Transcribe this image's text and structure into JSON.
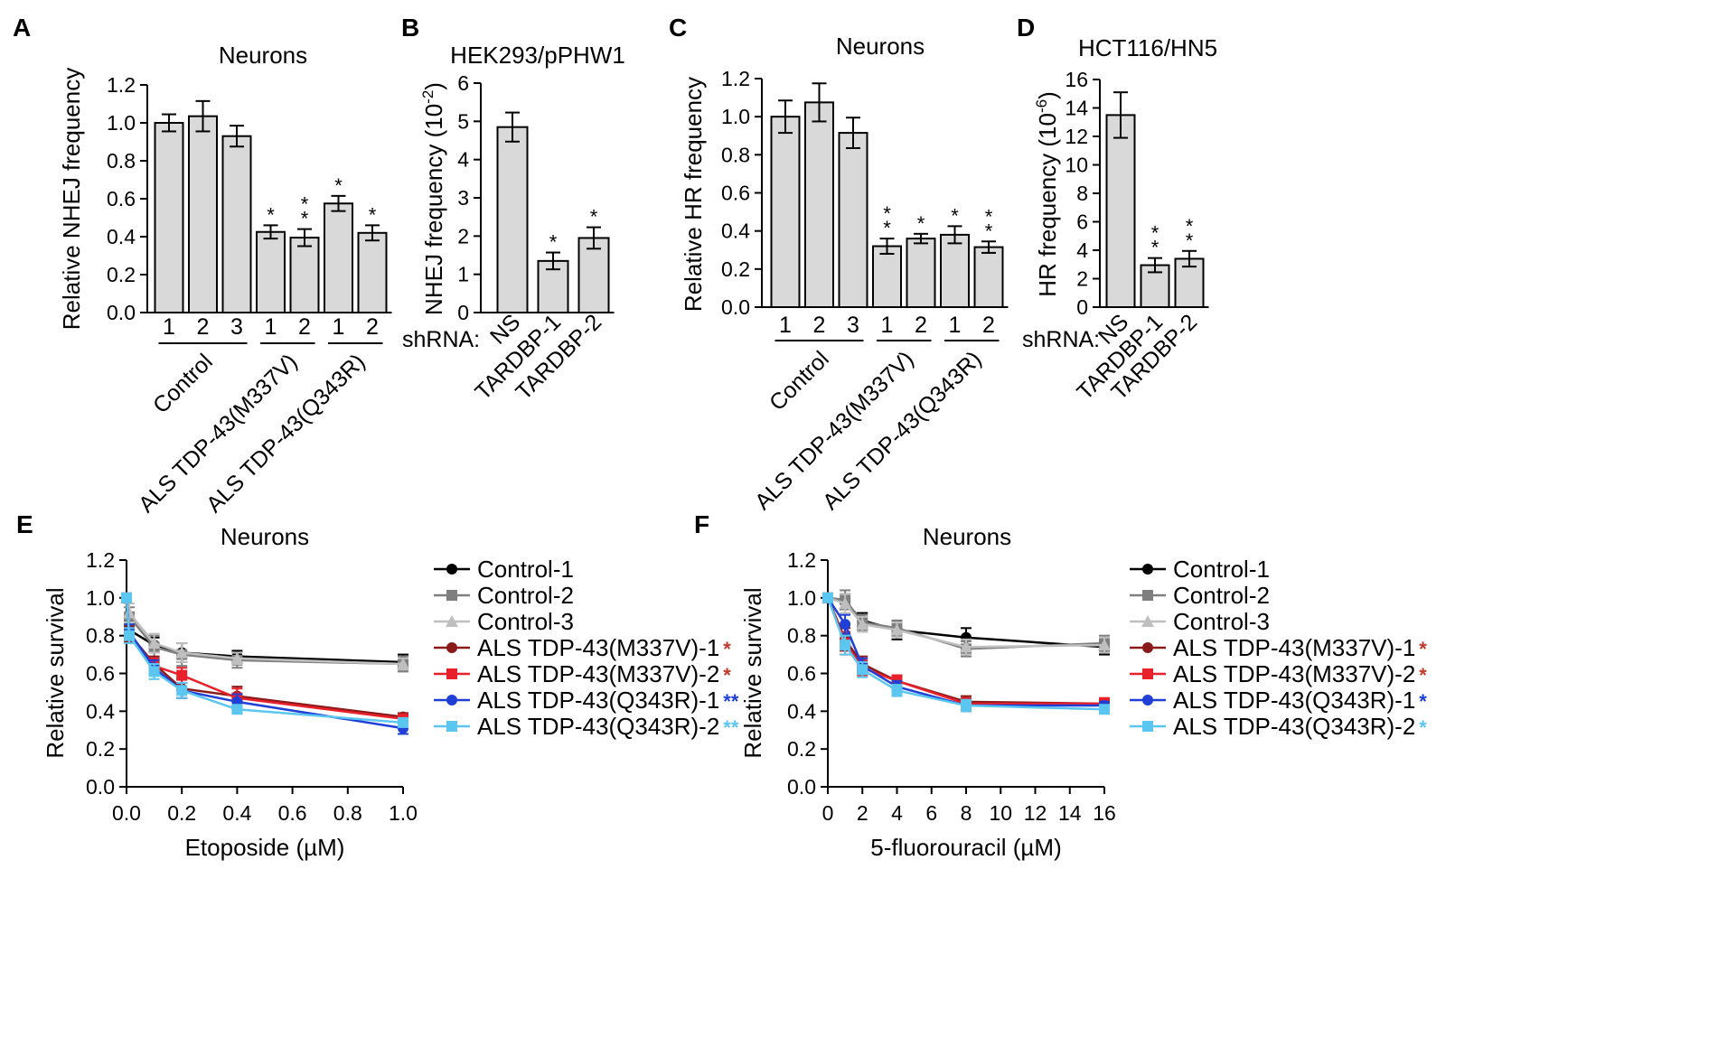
{
  "colors": {
    "bar_fill": "#d9d9d9",
    "control1": "#000000",
    "control2": "#7f7f7f",
    "control3": "#bfbfbf",
    "m337v1": "#8b1a1a",
    "m337v2": "#e8202a",
    "q343r1": "#1f3fd6",
    "q343r2": "#5bc6ef"
  },
  "chart_data": [
    {
      "id": "A",
      "type": "bar",
      "panel_letter": "A",
      "title": "Neurons",
      "ylabel": "Relative NHEJ frequency",
      "ylim": [
        0,
        1.2
      ],
      "yticks": [
        "0.0",
        "0.2",
        "0.4",
        "0.6",
        "0.8",
        "1.0",
        "1.2"
      ],
      "categories": [
        "1",
        "2",
        "3",
        "1",
        "2",
        "1",
        "2"
      ],
      "values": [
        1.0,
        1.035,
        0.93,
        0.425,
        0.395,
        0.575,
        0.42
      ],
      "errors": [
        0.045,
        0.08,
        0.055,
        0.035,
        0.045,
        0.04,
        0.04
      ],
      "stars": [
        "",
        "",
        "",
        "*",
        "**",
        "*",
        "*"
      ],
      "groups": [
        {
          "label": "Control",
          "from": 0,
          "to": 2
        },
        {
          "label": "ALS TDP-43(M337V)",
          "from": 3,
          "to": 4
        },
        {
          "label": "ALS TDP-43(Q343R)",
          "from": 5,
          "to": 6
        }
      ]
    },
    {
      "id": "B",
      "type": "bar",
      "panel_letter": "B",
      "title": "HEK293/pPHW1",
      "ylabel_main": "NHEJ frequency (10",
      "ylabel_exp": "-2",
      "ylabel_end": ")",
      "ylim": [
        0,
        6
      ],
      "yticks": [
        "0",
        "1",
        "2",
        "3",
        "4",
        "5",
        "6"
      ],
      "prefix": "shRNA:",
      "categories": [
        "NS",
        "TARDBP-1",
        "TARDBP-2"
      ],
      "values": [
        4.85,
        1.35,
        1.95
      ],
      "errors": [
        0.38,
        0.22,
        0.28
      ],
      "stars": [
        "",
        "*",
        "*"
      ]
    },
    {
      "id": "C",
      "type": "bar",
      "panel_letter": "C",
      "title": "Neurons",
      "ylabel": "Relative HR frequency",
      "ylim": [
        0,
        1.2
      ],
      "yticks": [
        "0.0",
        "0.2",
        "0.4",
        "0.6",
        "0.8",
        "1.0",
        "1.2"
      ],
      "categories": [
        "1",
        "2",
        "3",
        "1",
        "2",
        "1",
        "2"
      ],
      "values": [
        1.0,
        1.075,
        0.915,
        0.32,
        0.36,
        0.38,
        0.315
      ],
      "errors": [
        0.085,
        0.1,
        0.08,
        0.04,
        0.025,
        0.045,
        0.03
      ],
      "stars": [
        "",
        "",
        "",
        "**",
        "*",
        "*",
        "**"
      ],
      "groups": [
        {
          "label": "Control",
          "from": 0,
          "to": 2
        },
        {
          "label": "ALS TDP-43(M337V)",
          "from": 3,
          "to": 4
        },
        {
          "label": "ALS TDP-43(Q343R)",
          "from": 5,
          "to": 6
        }
      ]
    },
    {
      "id": "D",
      "type": "bar",
      "panel_letter": "D",
      "title": "HCT116/HN5",
      "ylabel_main": "HR frequency (10",
      "ylabel_exp": "-6",
      "ylabel_end": ")",
      "ylim": [
        0,
        16
      ],
      "yticks": [
        "0",
        "2",
        "4",
        "6",
        "8",
        "10",
        "12",
        "14",
        "16"
      ],
      "prefix": "shRNA:",
      "categories": [
        "NS",
        "TARDBP-1",
        "TARDBP-2"
      ],
      "values": [
        13.5,
        2.95,
        3.4
      ],
      "errors": [
        1.6,
        0.5,
        0.55
      ],
      "stars": [
        "",
        "**",
        "**"
      ]
    },
    {
      "id": "E",
      "type": "line",
      "panel_letter": "E",
      "title": "Neurons",
      "xlabel": "Etoposide (µM)",
      "ylabel": "Relative survival",
      "xlim": [
        0,
        1.0
      ],
      "ylim": [
        0,
        1.2
      ],
      "xticks": [
        0,
        0.2,
        0.4,
        0.6,
        0.8,
        1.0
      ],
      "xtick_labels": [
        "0.0",
        "0.2",
        "0.4",
        "0.6",
        "0.8",
        "1.0"
      ],
      "yticks": [
        "0.0",
        "0.2",
        "0.4",
        "0.6",
        "0.8",
        "1.0",
        "1.2"
      ],
      "x": [
        0,
        0.01,
        0.1,
        0.2,
        0.4,
        1.0
      ],
      "series": [
        {
          "name": "Control-1",
          "color": "#000000",
          "marker": "circle",
          "star": "",
          "values": [
            1.0,
            0.83,
            0.75,
            0.71,
            0.69,
            0.66
          ],
          "err": [
            0.02,
            0.05,
            0.04,
            0.05,
            0.03,
            0.04
          ]
        },
        {
          "name": "Control-2",
          "color": "#7f7f7f",
          "marker": "square",
          "star": "",
          "values": [
            1.0,
            0.9,
            0.74,
            0.7,
            0.67,
            0.65
          ],
          "err": [
            0.02,
            0.05,
            0.06,
            0.06,
            0.04,
            0.04
          ]
        },
        {
          "name": "Control-3",
          "color": "#bfbfbf",
          "marker": "triangle",
          "star": "",
          "values": [
            1.0,
            0.92,
            0.76,
            0.71,
            0.68,
            0.65
          ],
          "err": [
            0.02,
            0.05,
            0.05,
            0.05,
            0.03,
            0.03
          ]
        },
        {
          "name": "ALS TDP-43(M337V)-1",
          "color": "#8b1a1a",
          "marker": "circle",
          "star": "*",
          "star_color": "#c0392b",
          "values": [
            1.0,
            0.81,
            0.65,
            0.52,
            0.48,
            0.37
          ],
          "err": [
            0.02,
            0.04,
            0.04,
            0.05,
            0.05,
            0.02
          ]
        },
        {
          "name": "ALS TDP-43(M337V)-2",
          "color": "#e8202a",
          "marker": "square",
          "star": "*",
          "star_color": "#c0392b",
          "values": [
            1.0,
            0.8,
            0.64,
            0.59,
            0.47,
            0.36
          ],
          "err": [
            0.02,
            0.04,
            0.04,
            0.04,
            0.05,
            0.02
          ]
        },
        {
          "name": "ALS TDP-43(Q343R)-1",
          "color": "#1f3fd6",
          "marker": "circle",
          "star": "**",
          "star_color": "#1f3fd6",
          "values": [
            1.0,
            0.82,
            0.63,
            0.51,
            0.45,
            0.31
          ],
          "err": [
            0.02,
            0.04,
            0.04,
            0.04,
            0.04,
            0.03
          ]
        },
        {
          "name": "ALS TDP-43(Q343R)-2",
          "color": "#5bc6ef",
          "marker": "square",
          "star": "**",
          "star_color": "#5bc6ef",
          "values": [
            1.0,
            0.8,
            0.61,
            0.51,
            0.41,
            0.34
          ],
          "err": [
            0.02,
            0.04,
            0.04,
            0.04,
            0.02,
            0.02
          ]
        }
      ]
    },
    {
      "id": "F",
      "type": "line",
      "panel_letter": "F",
      "title": "Neurons",
      "xlabel": "5-fluorouracil (µM)",
      "ylabel": "Relative survival",
      "xlim": [
        0,
        16
      ],
      "ylim": [
        0,
        1.2
      ],
      "xticks": [
        0,
        2,
        4,
        6,
        8,
        10,
        12,
        14,
        16
      ],
      "xtick_labels": [
        "0",
        "2",
        "4",
        "6",
        "8",
        "10",
        "12",
        "14",
        "16"
      ],
      "yticks": [
        "0.0",
        "0.2",
        "0.4",
        "0.6",
        "0.8",
        "1.0",
        "1.2"
      ],
      "x": [
        0,
        1,
        2,
        4,
        8,
        16
      ],
      "series": [
        {
          "name": "Control-1",
          "color": "#000000",
          "marker": "circle",
          "star": "",
          "values": [
            1.0,
            0.98,
            0.88,
            0.83,
            0.79,
            0.74
          ],
          "err": [
            0.02,
            0.04,
            0.04,
            0.05,
            0.05,
            0.04
          ]
        },
        {
          "name": "Control-2",
          "color": "#7f7f7f",
          "marker": "square",
          "star": "",
          "values": [
            1.0,
            0.99,
            0.87,
            0.84,
            0.73,
            0.76
          ],
          "err": [
            0.02,
            0.05,
            0.04,
            0.04,
            0.04,
            0.04
          ]
        },
        {
          "name": "Control-3",
          "color": "#bfbfbf",
          "marker": "triangle",
          "star": "",
          "values": [
            1.0,
            0.97,
            0.86,
            0.83,
            0.74,
            0.75
          ],
          "err": [
            0.02,
            0.05,
            0.04,
            0.04,
            0.04,
            0.04
          ]
        },
        {
          "name": "ALS TDP-43(M337V)-1",
          "color": "#8b1a1a",
          "marker": "circle",
          "star": "*",
          "star_color": "#c0392b",
          "values": [
            1.0,
            0.78,
            0.65,
            0.56,
            0.45,
            0.44
          ],
          "err": [
            0.02,
            0.06,
            0.04,
            0.03,
            0.03,
            0.02
          ]
        },
        {
          "name": "ALS TDP-43(M337V)-2",
          "color": "#e8202a",
          "marker": "square",
          "star": "*",
          "star_color": "#c0392b",
          "values": [
            1.0,
            0.76,
            0.63,
            0.56,
            0.44,
            0.44
          ],
          "err": [
            0.02,
            0.06,
            0.04,
            0.03,
            0.03,
            0.03
          ]
        },
        {
          "name": "ALS TDP-43(Q343R)-1",
          "color": "#1f3fd6",
          "marker": "circle",
          "star": "*",
          "star_color": "#1f3fd6",
          "values": [
            1.0,
            0.86,
            0.64,
            0.53,
            0.43,
            0.43
          ],
          "err": [
            0.02,
            0.05,
            0.04,
            0.03,
            0.03,
            0.02
          ]
        },
        {
          "name": "ALS TDP-43(Q343R)-2",
          "color": "#5bc6ef",
          "marker": "square",
          "star": "*",
          "star_color": "#5bc6ef",
          "values": [
            1.0,
            0.75,
            0.62,
            0.51,
            0.43,
            0.41
          ],
          "err": [
            0.02,
            0.05,
            0.04,
            0.03,
            0.03,
            0.02
          ]
        }
      ]
    }
  ]
}
